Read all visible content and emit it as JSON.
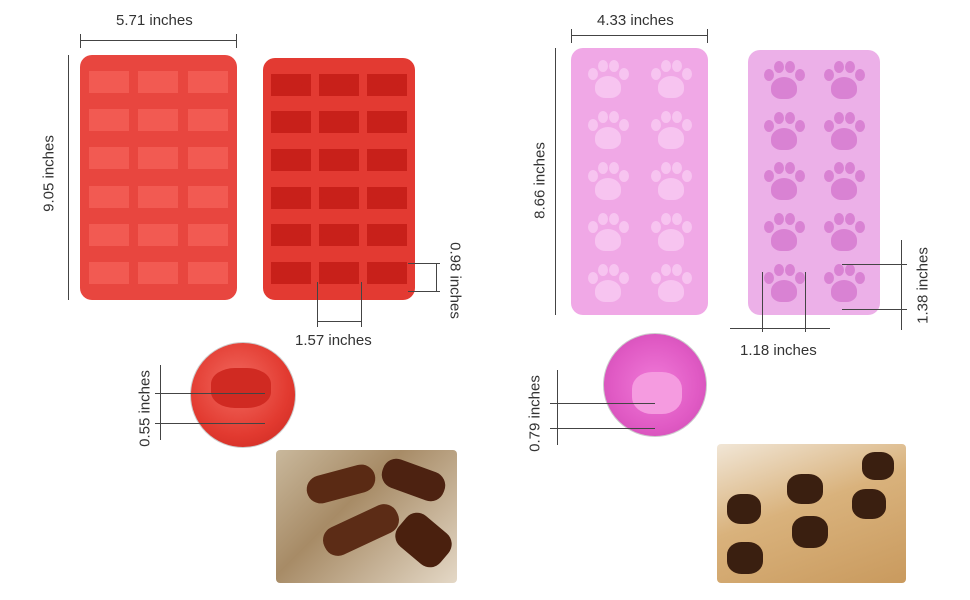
{
  "bone_mold": {
    "width": "5.71 inches",
    "height": "9.05 inches",
    "cavity_height": "0.98 inches",
    "cavity_width": "1.57 inches",
    "depth": "0.55 inches",
    "color": "#e8463f",
    "rows": 6,
    "cols": 3
  },
  "paw_mold": {
    "width": "4.33 inches",
    "height": "8.66 inches",
    "cavity_width": "1.18 inches",
    "cavity_height": "1.38 inches",
    "depth": "0.79 inches",
    "color": "#f0a8e6",
    "rows": 5,
    "cols": 2
  }
}
